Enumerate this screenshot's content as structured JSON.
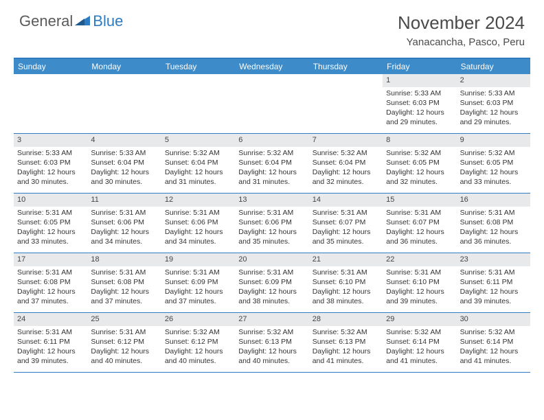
{
  "logo": {
    "part1": "General",
    "part2": "Blue"
  },
  "title": "November 2024",
  "location": "Yanacancha, Pasco, Peru",
  "colors": {
    "accent": "#2d7bc0",
    "header_bar": "#3d8bc9",
    "daynum_bg": "#e7e9ea",
    "text": "#333333",
    "title_text": "#4a4a4a"
  },
  "day_headers": [
    "Sunday",
    "Monday",
    "Tuesday",
    "Wednesday",
    "Thursday",
    "Friday",
    "Saturday"
  ],
  "weeks": [
    [
      {
        "num": "",
        "sunrise": "",
        "sunset": "",
        "daylight": ""
      },
      {
        "num": "",
        "sunrise": "",
        "sunset": "",
        "daylight": ""
      },
      {
        "num": "",
        "sunrise": "",
        "sunset": "",
        "daylight": ""
      },
      {
        "num": "",
        "sunrise": "",
        "sunset": "",
        "daylight": ""
      },
      {
        "num": "",
        "sunrise": "",
        "sunset": "",
        "daylight": ""
      },
      {
        "num": "1",
        "sunrise": "Sunrise: 5:33 AM",
        "sunset": "Sunset: 6:03 PM",
        "daylight": "Daylight: 12 hours and 29 minutes."
      },
      {
        "num": "2",
        "sunrise": "Sunrise: 5:33 AM",
        "sunset": "Sunset: 6:03 PM",
        "daylight": "Daylight: 12 hours and 29 minutes."
      }
    ],
    [
      {
        "num": "3",
        "sunrise": "Sunrise: 5:33 AM",
        "sunset": "Sunset: 6:03 PM",
        "daylight": "Daylight: 12 hours and 30 minutes."
      },
      {
        "num": "4",
        "sunrise": "Sunrise: 5:33 AM",
        "sunset": "Sunset: 6:04 PM",
        "daylight": "Daylight: 12 hours and 30 minutes."
      },
      {
        "num": "5",
        "sunrise": "Sunrise: 5:32 AM",
        "sunset": "Sunset: 6:04 PM",
        "daylight": "Daylight: 12 hours and 31 minutes."
      },
      {
        "num": "6",
        "sunrise": "Sunrise: 5:32 AM",
        "sunset": "Sunset: 6:04 PM",
        "daylight": "Daylight: 12 hours and 31 minutes."
      },
      {
        "num": "7",
        "sunrise": "Sunrise: 5:32 AM",
        "sunset": "Sunset: 6:04 PM",
        "daylight": "Daylight: 12 hours and 32 minutes."
      },
      {
        "num": "8",
        "sunrise": "Sunrise: 5:32 AM",
        "sunset": "Sunset: 6:05 PM",
        "daylight": "Daylight: 12 hours and 32 minutes."
      },
      {
        "num": "9",
        "sunrise": "Sunrise: 5:32 AM",
        "sunset": "Sunset: 6:05 PM",
        "daylight": "Daylight: 12 hours and 33 minutes."
      }
    ],
    [
      {
        "num": "10",
        "sunrise": "Sunrise: 5:31 AM",
        "sunset": "Sunset: 6:05 PM",
        "daylight": "Daylight: 12 hours and 33 minutes."
      },
      {
        "num": "11",
        "sunrise": "Sunrise: 5:31 AM",
        "sunset": "Sunset: 6:06 PM",
        "daylight": "Daylight: 12 hours and 34 minutes."
      },
      {
        "num": "12",
        "sunrise": "Sunrise: 5:31 AM",
        "sunset": "Sunset: 6:06 PM",
        "daylight": "Daylight: 12 hours and 34 minutes."
      },
      {
        "num": "13",
        "sunrise": "Sunrise: 5:31 AM",
        "sunset": "Sunset: 6:06 PM",
        "daylight": "Daylight: 12 hours and 35 minutes."
      },
      {
        "num": "14",
        "sunrise": "Sunrise: 5:31 AM",
        "sunset": "Sunset: 6:07 PM",
        "daylight": "Daylight: 12 hours and 35 minutes."
      },
      {
        "num": "15",
        "sunrise": "Sunrise: 5:31 AM",
        "sunset": "Sunset: 6:07 PM",
        "daylight": "Daylight: 12 hours and 36 minutes."
      },
      {
        "num": "16",
        "sunrise": "Sunrise: 5:31 AM",
        "sunset": "Sunset: 6:08 PM",
        "daylight": "Daylight: 12 hours and 36 minutes."
      }
    ],
    [
      {
        "num": "17",
        "sunrise": "Sunrise: 5:31 AM",
        "sunset": "Sunset: 6:08 PM",
        "daylight": "Daylight: 12 hours and 37 minutes."
      },
      {
        "num": "18",
        "sunrise": "Sunrise: 5:31 AM",
        "sunset": "Sunset: 6:08 PM",
        "daylight": "Daylight: 12 hours and 37 minutes."
      },
      {
        "num": "19",
        "sunrise": "Sunrise: 5:31 AM",
        "sunset": "Sunset: 6:09 PM",
        "daylight": "Daylight: 12 hours and 37 minutes."
      },
      {
        "num": "20",
        "sunrise": "Sunrise: 5:31 AM",
        "sunset": "Sunset: 6:09 PM",
        "daylight": "Daylight: 12 hours and 38 minutes."
      },
      {
        "num": "21",
        "sunrise": "Sunrise: 5:31 AM",
        "sunset": "Sunset: 6:10 PM",
        "daylight": "Daylight: 12 hours and 38 minutes."
      },
      {
        "num": "22",
        "sunrise": "Sunrise: 5:31 AM",
        "sunset": "Sunset: 6:10 PM",
        "daylight": "Daylight: 12 hours and 39 minutes."
      },
      {
        "num": "23",
        "sunrise": "Sunrise: 5:31 AM",
        "sunset": "Sunset: 6:11 PM",
        "daylight": "Daylight: 12 hours and 39 minutes."
      }
    ],
    [
      {
        "num": "24",
        "sunrise": "Sunrise: 5:31 AM",
        "sunset": "Sunset: 6:11 PM",
        "daylight": "Daylight: 12 hours and 39 minutes."
      },
      {
        "num": "25",
        "sunrise": "Sunrise: 5:31 AM",
        "sunset": "Sunset: 6:12 PM",
        "daylight": "Daylight: 12 hours and 40 minutes."
      },
      {
        "num": "26",
        "sunrise": "Sunrise: 5:32 AM",
        "sunset": "Sunset: 6:12 PM",
        "daylight": "Daylight: 12 hours and 40 minutes."
      },
      {
        "num": "27",
        "sunrise": "Sunrise: 5:32 AM",
        "sunset": "Sunset: 6:13 PM",
        "daylight": "Daylight: 12 hours and 40 minutes."
      },
      {
        "num": "28",
        "sunrise": "Sunrise: 5:32 AM",
        "sunset": "Sunset: 6:13 PM",
        "daylight": "Daylight: 12 hours and 41 minutes."
      },
      {
        "num": "29",
        "sunrise": "Sunrise: 5:32 AM",
        "sunset": "Sunset: 6:14 PM",
        "daylight": "Daylight: 12 hours and 41 minutes."
      },
      {
        "num": "30",
        "sunrise": "Sunrise: 5:32 AM",
        "sunset": "Sunset: 6:14 PM",
        "daylight": "Daylight: 12 hours and 41 minutes."
      }
    ]
  ]
}
